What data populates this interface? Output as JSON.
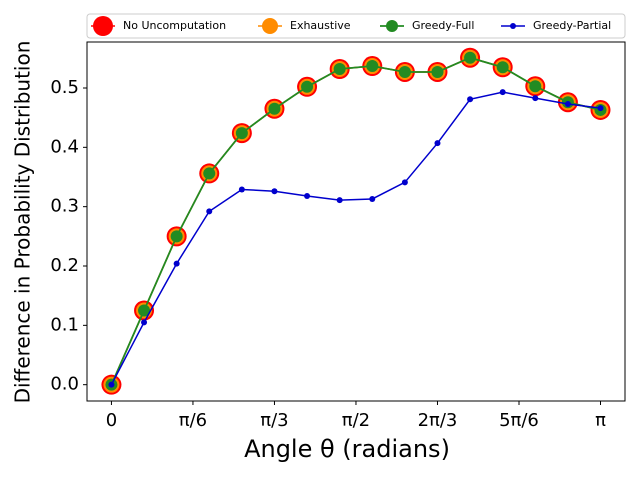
{
  "chart_data": {
    "type": "line",
    "xlabel": "Angle θ (radians)",
    "ylabel": "Difference in Probability Distribution",
    "x": [
      0,
      0.2094,
      0.4189,
      0.6283,
      0.8378,
      1.0472,
      1.2566,
      1.4661,
      1.6755,
      1.885,
      2.0944,
      2.3038,
      2.5133,
      2.7227,
      2.9322,
      3.1416
    ],
    "series": [
      {
        "name": "No Uncomputation",
        "color": "#ff0000",
        "values": [
          0,
          0.125,
          0.25,
          0.356,
          0.424,
          0.465,
          0.502,
          0.532,
          0.537,
          0.527,
          0.527,
          0.551,
          0.535,
          0.503,
          0.476,
          0.463
        ]
      },
      {
        "name": "Exhaustive",
        "color": "#ff8c00",
        "values": [
          0,
          0.125,
          0.25,
          0.356,
          0.424,
          0.465,
          0.502,
          0.532,
          0.537,
          0.527,
          0.527,
          0.551,
          0.535,
          0.503,
          0.476,
          0.463
        ]
      },
      {
        "name": "Greedy-Full",
        "color": "#228b22",
        "values": [
          0,
          0.125,
          0.25,
          0.356,
          0.424,
          0.465,
          0.502,
          0.532,
          0.537,
          0.527,
          0.527,
          0.551,
          0.535,
          0.503,
          0.476,
          0.463
        ]
      },
      {
        "name": "Greedy-Partial",
        "color": "#0000cd",
        "values": [
          0,
          0.105,
          0.204,
          0.292,
          0.329,
          0.326,
          0.318,
          0.311,
          0.313,
          0.341,
          0.407,
          0.481,
          0.493,
          0.483,
          0.473,
          0.466
        ]
      }
    ],
    "xlim": [
      -0.157,
      3.299
    ],
    "xticks": [
      0,
      {
        "value": 0.5236,
        "label": "π/6"
      },
      {
        "value": 1.0472,
        "label": "π/3"
      },
      {
        "value": 1.5708,
        "label": "π/2"
      },
      {
        "value": 2.0944,
        "label": "2π/3"
      },
      {
        "value": 2.618,
        "label": "5π/6"
      },
      {
        "value": 3.1416,
        "label": "π"
      }
    ],
    "ylim": [
      -0.0275,
      0.5775
    ],
    "yticks": [
      {
        "value": 0,
        "label": "0.0"
      },
      0.1,
      0.2,
      0.3,
      0.4,
      0.5
    ],
    "legend": "upper center",
    "grid": false
  }
}
